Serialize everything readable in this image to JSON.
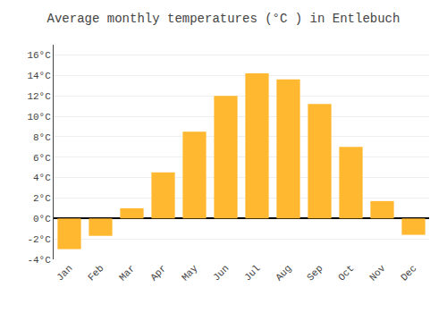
{
  "chart_data": {
    "type": "bar",
    "title": "Average monthly temperatures (°C ) in Entlebuch",
    "categories": [
      "Jan",
      "Feb",
      "Mar",
      "Apr",
      "May",
      "Jun",
      "Jul",
      "Aug",
      "Sep",
      "Oct",
      "Nov",
      "Dec"
    ],
    "values": [
      -3.0,
      -1.7,
      1.0,
      4.5,
      8.5,
      12.0,
      14.2,
      13.6,
      11.2,
      7.0,
      1.7,
      -1.6
    ],
    "color": "#FFB830",
    "ylim": [
      -4,
      17
    ],
    "yticks": [
      {
        "value": -4,
        "label": "-4°C"
      },
      {
        "value": -2,
        "label": "-2°C"
      },
      {
        "value": 0,
        "label": "0°C"
      },
      {
        "value": 2,
        "label": "2°C"
      },
      {
        "value": 4,
        "label": "4°C"
      },
      {
        "value": 6,
        "label": "6°C"
      },
      {
        "value": 8,
        "label": "8°C"
      },
      {
        "value": 10,
        "label": "10°C"
      },
      {
        "value": 12,
        "label": "12°C"
      },
      {
        "value": 14,
        "label": "14°C"
      },
      {
        "value": 16,
        "label": "16°C"
      }
    ],
    "grid": true
  }
}
